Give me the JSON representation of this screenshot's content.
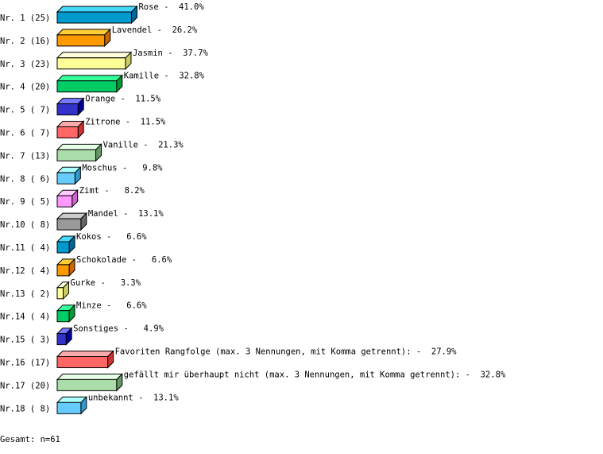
{
  "chart_data": {
    "type": "bar",
    "orientation": "horizontal",
    "style": "3d",
    "grid": false,
    "unit": "%",
    "rows": [
      {
        "rank": "Nr. 1",
        "count": 25,
        "label": "Rose",
        "percent": 41.0,
        "color": "#0099cc"
      },
      {
        "rank": "Nr. 2",
        "count": 16,
        "label": "Lavendel",
        "percent": 26.2,
        "color": "#ff9900"
      },
      {
        "rank": "Nr. 3",
        "count": 23,
        "label": "Jasmin",
        "percent": 37.7,
        "color": "#ffff99"
      },
      {
        "rank": "Nr. 4",
        "count": 20,
        "label": "Kamille",
        "percent": 32.8,
        "color": "#00cc66"
      },
      {
        "rank": "Nr. 5",
        "count": 7,
        "label": "Orange",
        "percent": 11.5,
        "color": "#3333cc"
      },
      {
        "rank": "Nr. 6",
        "count": 7,
        "label": "Zitrone",
        "percent": 11.5,
        "color": "#ff6666"
      },
      {
        "rank": "Nr. 7",
        "count": 13,
        "label": "Vanille",
        "percent": 21.3,
        "color": "#aaddaa"
      },
      {
        "rank": "Nr. 8",
        "count": 6,
        "label": "Moschus",
        "percent": 9.8,
        "color": "#66ccff"
      },
      {
        "rank": "Nr. 9",
        "count": 5,
        "label": "Zimt",
        "percent": 8.2,
        "color": "#ff99ff"
      },
      {
        "rank": "Nr.10",
        "count": 8,
        "label": "Mandel",
        "percent": 13.1,
        "color": "#999999"
      },
      {
        "rank": "Nr.11",
        "count": 4,
        "label": "Kokos",
        "percent": 6.6,
        "color": "#0099cc"
      },
      {
        "rank": "Nr.12",
        "count": 4,
        "label": "Schokolade",
        "percent": 6.6,
        "color": "#ff9900"
      },
      {
        "rank": "Nr.13",
        "count": 2,
        "label": "Gurke",
        "percent": 3.3,
        "color": "#ffff99"
      },
      {
        "rank": "Nr.14",
        "count": 4,
        "label": "Minze",
        "percent": 6.6,
        "color": "#00cc66"
      },
      {
        "rank": "Nr.15",
        "count": 3,
        "label": "Sonstiges",
        "percent": 4.9,
        "color": "#3333cc"
      },
      {
        "rank": "Nr.16",
        "count": 17,
        "label": "Favoriten Rangfolge (max. 3 Nennungen, mit Komma getrennt):",
        "percent": 27.9,
        "color": "#ff6666"
      },
      {
        "rank": "Nr.17",
        "count": 20,
        "label": "gefällt mir überhaupt nicht (max. 3 Nennungen, mit Komma getrennt):",
        "percent": 32.8,
        "color": "#aaddaa"
      },
      {
        "rank": "Nr.18",
        "count": 8,
        "label": "unbekannt",
        "percent": 13.1,
        "color": "#66ccff"
      }
    ]
  },
  "total_label": "Gesamt: n=61"
}
